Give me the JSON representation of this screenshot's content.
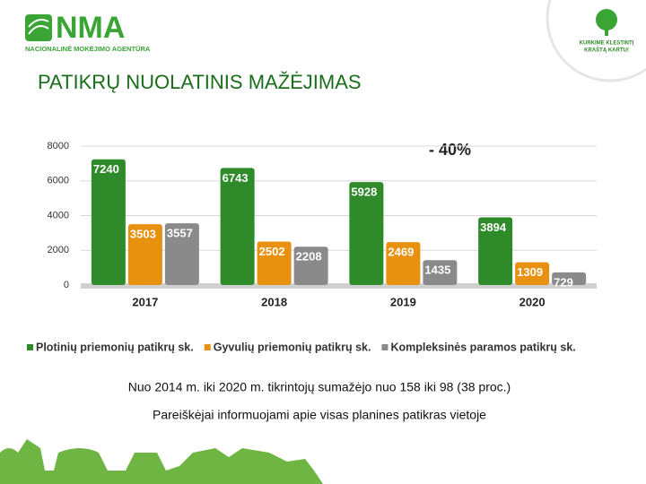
{
  "slide": {
    "logo": "NMA",
    "logo_subtitle": "NACIONALINĖ MOKĖJIMO AGENTŪRA",
    "badge": [
      "KURKIME KLESTINTĮ",
      "KRAŠTĄ KARTU!"
    ],
    "heading": "PATIKRŲ NUOLATINIS MAŽĖJIMAS",
    "notes": [
      "Nuo 2014 m. iki 2020 m. tikrintojų sumažėjo nuo 158 iki 98 (38 proc.)",
      "Pareiškėjai informuojami apie visas planines patikras vietoje"
    ]
  },
  "chart_data": {
    "type": "bar",
    "annotation": "- 40%",
    "categories": [
      "2017",
      "2018",
      "2019",
      "2020"
    ],
    "series": [
      {
        "name": "Plotinių priemonių patikrų sk.",
        "color": "#2f8a2a",
        "values": [
          7240,
          6743,
          5928,
          3894
        ]
      },
      {
        "name": "Gyvulių priemonių patikrų sk.",
        "color": "#e8900f",
        "values": [
          3503,
          2502,
          2469,
          1309
        ]
      },
      {
        "name": "Kompleksinės paramos patikrų sk.",
        "color": "#8a8a8a",
        "values": [
          3557,
          2208,
          1435,
          729
        ]
      }
    ],
    "ylim": [
      0,
      8000
    ],
    "yticks": [
      0,
      2000,
      4000,
      6000,
      8000
    ],
    "grid": true,
    "legend": "bottom"
  }
}
